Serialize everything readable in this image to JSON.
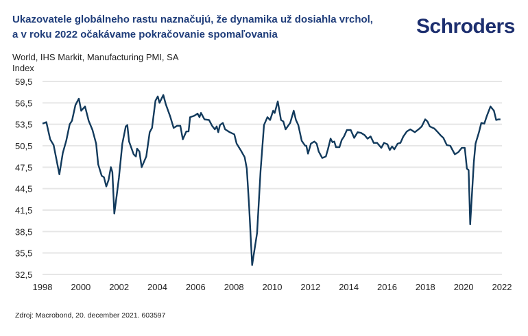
{
  "header": {
    "title_line1": "Ukazovatele globálneho rastu naznačujú, že dynamika už dosiahla vrchol,",
    "title_line2": "a v roku 2022 očakávame pokračovanie spomaľovania",
    "logo": "Schroders"
  },
  "footer": {
    "source": "Zdroj: Macrobond, 20. december 2021. 603597"
  },
  "colors": {
    "title": "#1f3d7a",
    "line": "#123a5c",
    "grid": "#e6e6e6",
    "logo": "#1c2e6e"
  },
  "chart_data": {
    "type": "line",
    "title": "World, IHS Markit, Manufacturing PMI, SA",
    "ylabel": "Index",
    "xlim": [
      1998,
      2022
    ],
    "ylim": [
      32.5,
      59.5
    ],
    "grid": true,
    "yticks": [
      "59,5",
      "56,5",
      "53,5",
      "50,5",
      "47,5",
      "44,5",
      "41,5",
      "38,5",
      "35,5",
      "32,5"
    ],
    "ytick_values": [
      59.5,
      56.5,
      53.5,
      50.5,
      47.5,
      44.5,
      41.5,
      38.5,
      35.5,
      32.5
    ],
    "xticks": [
      "1998",
      "2000",
      "2002",
      "2004",
      "2006",
      "2008",
      "2010",
      "2012",
      "2014",
      "2016",
      "2018",
      "2020",
      "2022"
    ],
    "xtick_values": [
      1998,
      2000,
      2002,
      2004,
      2006,
      2008,
      2010,
      2012,
      2014,
      2016,
      2018,
      2020,
      2022
    ],
    "series": [
      {
        "x": [
          1998.0,
          1998.2,
          1998.4,
          1998.58,
          1998.88,
          1999.06,
          1999.24,
          1999.42,
          1999.54,
          1999.72,
          1999.9,
          2000.02,
          2000.22,
          2000.41,
          2000.61,
          2000.8,
          2000.91,
          2001.09,
          2001.21,
          2001.33,
          2001.45,
          2001.57,
          2001.65,
          2001.75,
          2001.87,
          2001.99,
          2002.17,
          2002.35,
          2002.43,
          2002.52,
          2002.76,
          2002.88,
          2002.94,
          2003.06,
          2003.18,
          2003.42,
          2003.6,
          2003.72,
          2003.9,
          2004.02,
          2004.11,
          2004.31,
          2004.44,
          2004.67,
          2004.85,
          2005.03,
          2005.2,
          2005.33,
          2005.51,
          2005.63,
          2005.71,
          2005.93,
          2006.1,
          2006.2,
          2006.28,
          2006.46,
          2006.7,
          2006.86,
          2007.0,
          2007.1,
          2007.18,
          2007.27,
          2007.42,
          2007.54,
          2007.78,
          2008.02,
          2008.14,
          2008.37,
          2008.56,
          2008.67,
          2008.79,
          2008.95,
          2009.21,
          2009.39,
          2009.57,
          2009.75,
          2009.89,
          2010.05,
          2010.13,
          2010.29,
          2010.46,
          2010.58,
          2010.7,
          2010.94,
          2011.12,
          2011.24,
          2011.36,
          2011.54,
          2011.72,
          2011.78,
          2011.87,
          2012.02,
          2012.2,
          2012.32,
          2012.43,
          2012.61,
          2012.8,
          2012.91,
          2013.05,
          2013.15,
          2013.24,
          2013.33,
          2013.51,
          2013.63,
          2013.75,
          2013.9,
          2014.1,
          2014.28,
          2014.46,
          2014.64,
          2014.82,
          2014.98,
          2015.14,
          2015.3,
          2015.48,
          2015.7,
          2015.84,
          2016.02,
          2016.14,
          2016.26,
          2016.38,
          2016.55,
          2016.7,
          2016.85,
          2017.03,
          2017.21,
          2017.45,
          2017.69,
          2017.81,
          2017.99,
          2018.11,
          2018.23,
          2018.47,
          2018.65,
          2018.82,
          2018.94,
          2019.12,
          2019.3,
          2019.54,
          2019.72,
          2019.9,
          2020.06,
          2020.17,
          2020.26,
          2020.34,
          2020.53,
          2020.62,
          2020.8,
          2020.92,
          2021.08,
          2021.2,
          2021.4,
          2021.58,
          2021.7,
          2021.82,
          2021.92
        ],
        "y": [
          53.6,
          53.8,
          51.4,
          50.6,
          46.5,
          49.5,
          51.2,
          53.5,
          54.0,
          56.2,
          57.1,
          55.4,
          56.0,
          54.0,
          52.7,
          50.8,
          47.9,
          46.3,
          46.1,
          44.8,
          45.7,
          47.5,
          46.8,
          41.0,
          43.4,
          46.0,
          50.8,
          53.2,
          53.4,
          51.1,
          49.3,
          49.0,
          50.1,
          49.7,
          47.5,
          49.0,
          52.4,
          53.0,
          56.8,
          57.4,
          56.5,
          57.6,
          56.3,
          54.6,
          53.0,
          53.3,
          53.3,
          51.4,
          52.5,
          52.5,
          54.5,
          54.7,
          55.0,
          54.5,
          55.1,
          54.2,
          54.1,
          53.3,
          52.8,
          53.2,
          52.4,
          53.4,
          53.7,
          52.8,
          52.4,
          52.1,
          50.8,
          49.8,
          48.9,
          47.3,
          42.2,
          33.8,
          38.3,
          47.0,
          53.4,
          54.5,
          54.1,
          55.4,
          55.1,
          56.7,
          54.1,
          53.9,
          52.8,
          53.7,
          55.4,
          54.1,
          53.4,
          51.2,
          50.5,
          50.5,
          49.4,
          50.8,
          51.1,
          50.8,
          49.7,
          48.8,
          49.0,
          50.0,
          51.5,
          51.0,
          51.1,
          50.3,
          50.3,
          51.3,
          51.8,
          52.7,
          52.7,
          51.6,
          52.4,
          52.3,
          52.0,
          51.5,
          51.8,
          50.9,
          50.9,
          50.2,
          50.9,
          50.7,
          49.9,
          50.4,
          50.0,
          50.8,
          50.9,
          51.8,
          52.5,
          52.8,
          52.4,
          52.9,
          53.2,
          54.2,
          53.9,
          53.2,
          52.9,
          52.4,
          51.9,
          51.6,
          50.6,
          50.5,
          49.3,
          49.6,
          50.2,
          50.2,
          47.3,
          47.1,
          39.5,
          48.2,
          50.8,
          52.4,
          53.7,
          53.6,
          54.6,
          56.0,
          55.4,
          54.1,
          54.2,
          54.2
        ]
      }
    ]
  }
}
